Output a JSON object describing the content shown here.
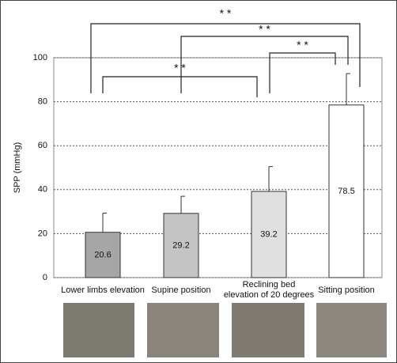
{
  "chart_data": {
    "type": "bar",
    "y_label": "SPP (mmHg)",
    "categories": [
      "Lower limbs elevation",
      "Supine position",
      "Reclining bed\nelevation of 20 degrees",
      "Sitting position"
    ],
    "values": [
      20.6,
      29.2,
      39.2,
      78.5
    ],
    "errors": [
      8.7,
      7.8,
      11.3,
      14.3
    ],
    "colors": [
      "#a6a6a6",
      "#c4c4c4",
      "#e0e0e0",
      "#ffffff"
    ],
    "ylim": [
      0,
      100
    ],
    "yticks": [
      0,
      20,
      40,
      60,
      80,
      100
    ],
    "grid": true,
    "significance": [
      "* *",
      "* *",
      "* *",
      "* *"
    ]
  }
}
